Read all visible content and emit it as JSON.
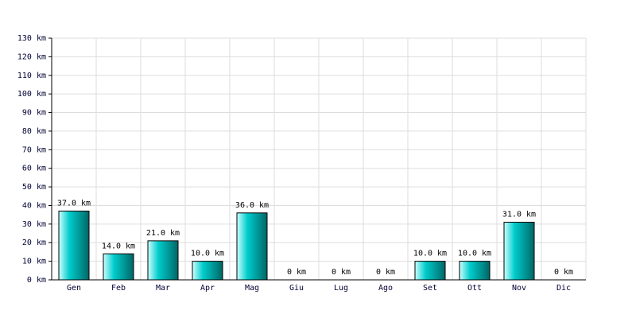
{
  "chart_data": {
    "type": "bar",
    "categories": [
      "Gen",
      "Feb",
      "Mar",
      "Apr",
      "Mag",
      "Giu",
      "Lug",
      "Ago",
      "Set",
      "Ott",
      "Nov",
      "Dic"
    ],
    "values": [
      37,
      14,
      21,
      10,
      36,
      0,
      0,
      0,
      10,
      10,
      31,
      0
    ],
    "value_labels": [
      "37.0 km",
      "14.0 km",
      "21.0 km",
      "10.0 km",
      "36.0 km",
      "0 km",
      "0 km",
      "0 km",
      "10.0 km",
      "10.0 km",
      "31.0 km",
      "0 km"
    ],
    "color": "#00cccc",
    "ylim": [
      0,
      130
    ],
    "yticks": [
      {
        "value": 0,
        "label": "0 km"
      },
      {
        "value": 10,
        "label": "10 km"
      },
      {
        "value": 20,
        "label": "20 km"
      },
      {
        "value": 30,
        "label": "30 km"
      },
      {
        "value": 40,
        "label": "40 km"
      },
      {
        "value": 50,
        "label": "50 km"
      },
      {
        "value": 60,
        "label": "60 km"
      },
      {
        "value": 70,
        "label": "70 km"
      },
      {
        "value": 80,
        "label": "80 km"
      },
      {
        "value": 90,
        "label": "90 km"
      },
      {
        "value": 100,
        "label": "100 km"
      },
      {
        "value": 110,
        "label": "110 km"
      },
      {
        "value": 120,
        "label": "120 km"
      },
      {
        "value": 130,
        "label": "130 km"
      }
    ],
    "grid": true
  }
}
